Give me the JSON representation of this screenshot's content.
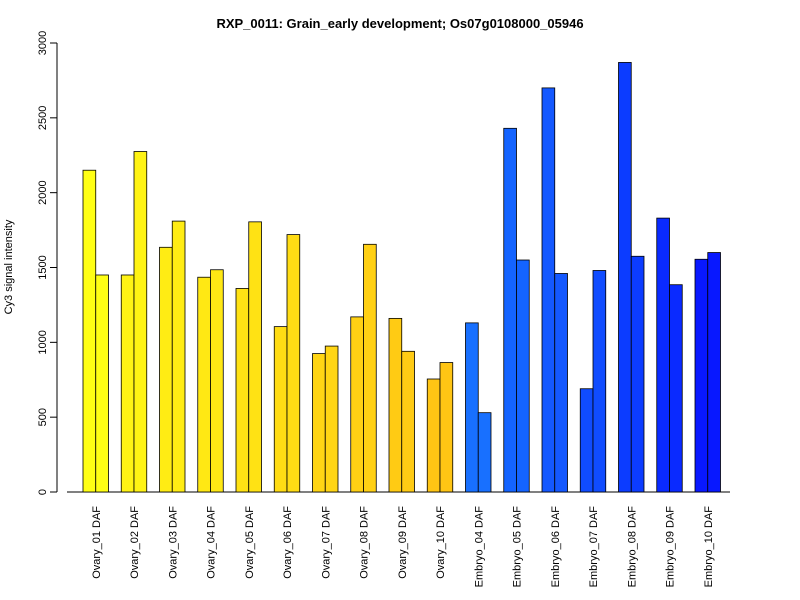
{
  "chart_data": {
    "type": "bar",
    "title": "RXP_0011: Grain_early development; Os07g0108000_05946",
    "xlabel": "",
    "ylabel": "Cy3 signal intensity",
    "ylim": [
      0,
      3000
    ],
    "yticks": [
      0,
      500,
      1000,
      1500,
      2000,
      2500,
      3000
    ],
    "grid": false,
    "legend": "none",
    "categories": [
      "Ovary_01 DAF",
      "Ovary_02 DAF",
      "Ovary_03 DAF",
      "Ovary_04 DAF",
      "Ovary_05 DAF",
      "Ovary_06 DAF",
      "Ovary_07 DAF",
      "Ovary_08 DAF",
      "Ovary_09 DAF",
      "Ovary_10 DAF",
      "Embryo_04 DAF",
      "Embryo_05 DAF",
      "Embryo_06 DAF",
      "Embryo_07 DAF",
      "Embryo_08 DAF",
      "Embryo_09 DAF",
      "Embryo_10 DAF"
    ],
    "series": [
      {
        "values": [
          2150,
          1450,
          1635,
          1435,
          1360,
          1105,
          925,
          1170,
          1160,
          755,
          1130,
          2430,
          2700,
          690,
          2870,
          1830,
          1555
        ]
      },
      {
        "values": [
          1450,
          2275,
          1810,
          1485,
          1805,
          1720,
          975,
          1655,
          940,
          865,
          530,
          1550,
          1460,
          1480,
          1575,
          1385,
          1600
        ]
      }
    ],
    "colors": [
      "#FFFF14",
      "#FFF314",
      "#FFEC14",
      "#FFE814",
      "#FFE214",
      "#FFDC14",
      "#FFD514",
      "#FFD014",
      "#FFCB14",
      "#FFC514",
      "#1870FF",
      "#1464FF",
      "#1458FF",
      "#104CFF",
      "#0C3CFF",
      "#0A2AFF",
      "#0818FF"
    ]
  }
}
